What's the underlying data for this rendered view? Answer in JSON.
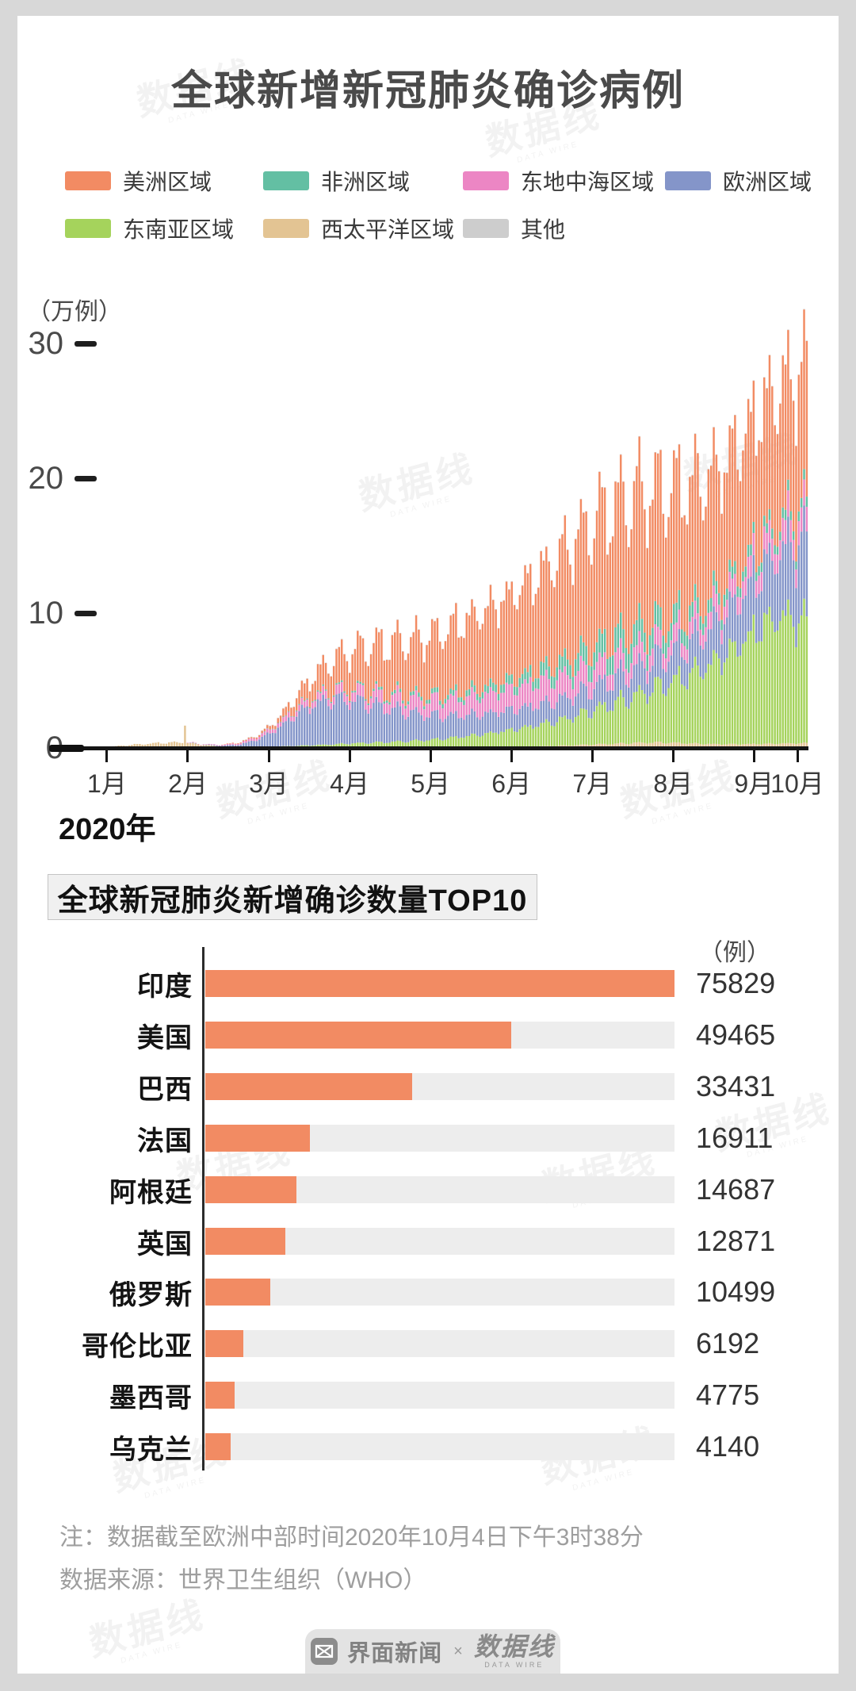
{
  "page": {
    "background": "#D8D8D8",
    "card_background": "#FFFFFF"
  },
  "title": "全球新增新冠肺炎确诊病例",
  "legend": {
    "items": [
      {
        "label": "美洲区域",
        "color": "#F28B63"
      },
      {
        "label": "非洲区域",
        "color": "#63BFA3"
      },
      {
        "label": "东地中海区域",
        "color": "#EC86C4"
      },
      {
        "label": "欧洲区域",
        "color": "#8495C9"
      },
      {
        "label": "东南亚区域",
        "color": "#A5D35C"
      },
      {
        "label": "西太平洋区域",
        "color": "#E3C493"
      },
      {
        "label": "其他",
        "color": "#CDCDCD"
      }
    ]
  },
  "chart_data": [
    {
      "type": "stacked-bar",
      "title": "全球新增新冠肺炎确诊病例",
      "y_axis": {
        "unit_label": "（万例）",
        "ticks": [
          30,
          20,
          10,
          0
        ],
        "max_wan": 33.6
      },
      "x_axis": {
        "year_label": "2020年",
        "months": [
          "1月",
          "2月",
          "3月",
          "4月",
          "5月",
          "6月",
          "7月",
          "8月",
          "9月",
          "10月"
        ],
        "span_days": 278
      },
      "anchor_interval_days": 7,
      "weekday_profile": [
        0.84,
        0.92,
        1.03,
        1.1,
        1.13,
        1.08,
        0.9
      ],
      "event_spike": {
        "series": "西太平洋区域",
        "day": 43,
        "extra_wan": 1.3
      },
      "stack_series_bottom_to_top": [
        {
          "name": "西太平洋区域",
          "color": "#E3C493",
          "weekly_values_wan": [
            0.01,
            0.02,
            0.08,
            0.2,
            0.3,
            0.38,
            0.42,
            0.25,
            0.12,
            0.08,
            0.06,
            0.06,
            0.07,
            0.08,
            0.08,
            0.08,
            0.08,
            0.08,
            0.07,
            0.07,
            0.07,
            0.08,
            0.08,
            0.09,
            0.1,
            0.12,
            0.15,
            0.2,
            0.25,
            0.3,
            0.35,
            0.4,
            0.4,
            0.35,
            0.3,
            0.28,
            0.28,
            0.3,
            0.32,
            0.35,
            0.35
          ]
        },
        {
          "name": "东南亚区域",
          "color": "#A5D35C",
          "weekly_values_wan": [
            0,
            0,
            0,
            0,
            0,
            0,
            0.01,
            0.01,
            0.01,
            0.02,
            0.03,
            0.05,
            0.08,
            0.12,
            0.18,
            0.25,
            0.3,
            0.35,
            0.42,
            0.5,
            0.6,
            0.75,
            0.9,
            1.1,
            1.3,
            1.55,
            1.8,
            2.1,
            2.5,
            2.9,
            3.3,
            3.8,
            4.3,
            4.9,
            5.6,
            6.4,
            7.4,
            8.6,
            9.4,
            9.2,
            8.6
          ]
        },
        {
          "name": "欧洲区域",
          "color": "#8495C9",
          "weekly_values_wan": [
            0,
            0,
            0,
            0,
            0.01,
            0.01,
            0.02,
            0.02,
            0.05,
            0.15,
            0.5,
            1.2,
            2.2,
            3.0,
            3.3,
            3.2,
            2.9,
            2.5,
            2.2,
            1.9,
            1.7,
            1.6,
            1.5,
            1.5,
            1.5,
            1.5,
            1.5,
            1.6,
            1.7,
            1.8,
            1.9,
            2.0,
            2.1,
            2.3,
            2.5,
            2.9,
            3.4,
            4.0,
            4.7,
            5.6,
            6.5
          ]
        },
        {
          "name": "东地中海区域",
          "color": "#EC86C4",
          "weekly_values_wan": [
            0,
            0,
            0,
            0,
            0.01,
            0.01,
            0.02,
            0.03,
            0.05,
            0.1,
            0.2,
            0.3,
            0.4,
            0.5,
            0.6,
            0.7,
            0.8,
            0.9,
            1.0,
            1.1,
            1.2,
            1.3,
            1.4,
            1.5,
            1.6,
            1.7,
            1.7,
            1.6,
            1.5,
            1.4,
            1.3,
            1.3,
            1.2,
            1.2,
            1.2,
            1.3,
            1.4,
            1.5,
            1.6,
            1.7,
            1.8
          ]
        },
        {
          "name": "非洲区域",
          "color": "#63BFA3",
          "weekly_values_wan": [
            0,
            0,
            0,
            0,
            0,
            0,
            0.01,
            0.01,
            0.01,
            0.01,
            0.02,
            0.03,
            0.05,
            0.08,
            0.1,
            0.12,
            0.15,
            0.2,
            0.25,
            0.3,
            0.35,
            0.4,
            0.5,
            0.6,
            0.7,
            0.85,
            1.0,
            1.2,
            1.4,
            1.6,
            1.7,
            1.6,
            1.4,
            1.2,
            1.0,
            0.9,
            0.8,
            0.75,
            0.7,
            0.7,
            0.7
          ]
        },
        {
          "name": "美洲区域",
          "color": "#F28B63",
          "weekly_values_wan": [
            0,
            0,
            0,
            0,
            0,
            0.01,
            0.01,
            0.01,
            0.02,
            0.05,
            0.1,
            0.3,
            0.8,
            1.5,
            2.2,
            2.8,
            3.3,
            3.7,
            4.0,
            4.3,
            4.7,
            5.2,
            5.6,
            6.0,
            6.5,
            7.0,
            7.8,
            8.6,
            9.3,
            9.8,
            10.0,
            10.0,
            9.8,
            9.5,
            9.3,
            9.2,
            9.5,
            9.8,
            10.0,
            10.2,
            10.5
          ]
        },
        {
          "name": "其他",
          "color": "#CDCDCD",
          "weekly_values_wan": [
            0,
            0,
            0,
            0,
            0,
            0,
            0,
            0,
            0.01,
            0.02,
            0.03,
            0.03,
            0.03,
            0.03,
            0.03,
            0.03,
            0.03,
            0.03,
            0.03,
            0.03,
            0.03,
            0.03,
            0.03,
            0.03,
            0.03,
            0.03,
            0.03,
            0.03,
            0.03,
            0.03,
            0.03,
            0.03,
            0.03,
            0.03,
            0.03,
            0.03,
            0.03,
            0.03,
            0.03,
            0.03,
            0.03
          ]
        }
      ]
    },
    {
      "type": "bar",
      "title": "全球新冠肺炎新增确诊数量TOP10",
      "unit_label": "（例）",
      "categories": [
        "印度",
        "美国",
        "巴西",
        "法国",
        "阿根廷",
        "英国",
        "俄罗斯",
        "哥伦比亚",
        "墨西哥",
        "乌克兰"
      ],
      "values": [
        75829,
        49465,
        33431,
        16911,
        14687,
        12871,
        10499,
        6192,
        4775,
        4140
      ],
      "xmax": 75829,
      "bar_color": "#F28B63",
      "track_color": "#EDEDED"
    }
  ],
  "notes": {
    "line1": "注：数据截至欧洲中部时间2020年10月4日下午3时38分",
    "line2": "数据来源：世界卫生组织（WHO）"
  },
  "footer": {
    "brand1": "界面新闻",
    "separator": "×",
    "brand2": "数据线",
    "brand2_sub": "DATA WIRE"
  },
  "watermark_text": "数据线",
  "watermark_subtext": "DATA WIRE"
}
